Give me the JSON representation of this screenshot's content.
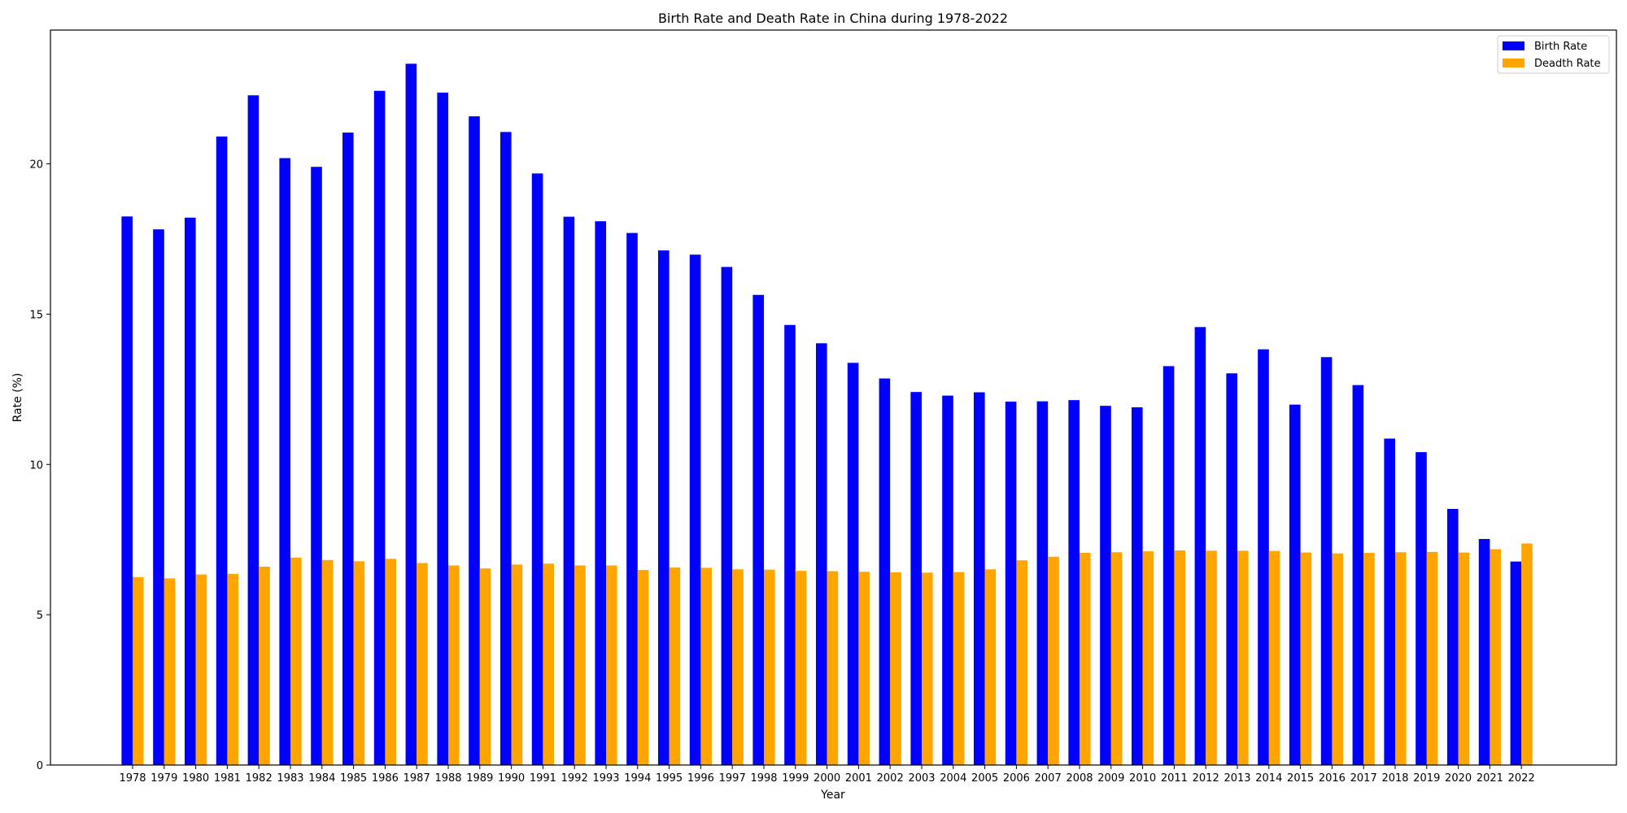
{
  "chart_data": {
    "type": "bar",
    "title": "Birth Rate and Death Rate in China during 1978-2022",
    "xlabel": "Year",
    "ylabel": "Rate (%)",
    "ylim": [
      0,
      24.45
    ],
    "yticks": [
      0,
      5,
      10,
      15,
      20
    ],
    "ytick_labels": [
      "0",
      "5",
      "10",
      "15",
      "20"
    ],
    "grid": false,
    "legend_position": "top-right",
    "categories": [
      "1978",
      "1979",
      "1980",
      "1981",
      "1982",
      "1983",
      "1984",
      "1985",
      "1986",
      "1987",
      "1988",
      "1989",
      "1990",
      "1991",
      "1992",
      "1993",
      "1994",
      "1995",
      "1996",
      "1997",
      "1998",
      "1999",
      "2000",
      "2001",
      "2002",
      "2003",
      "2004",
      "2005",
      "2006",
      "2007",
      "2008",
      "2009",
      "2010",
      "2011",
      "2012",
      "2013",
      "2014",
      "2015",
      "2016",
      "2017",
      "2018",
      "2019",
      "2020",
      "2021",
      "2022"
    ],
    "series": [
      {
        "name": "Birth Rate",
        "color": "#0000ff",
        "values": [
          18.25,
          17.82,
          18.21,
          20.91,
          22.28,
          20.19,
          19.9,
          21.04,
          22.43,
          23.33,
          22.37,
          21.58,
          21.06,
          19.68,
          18.24,
          18.09,
          17.7,
          17.12,
          16.98,
          16.57,
          15.64,
          14.64,
          14.03,
          13.38,
          12.86,
          12.41,
          12.29,
          12.4,
          12.09,
          12.1,
          12.14,
          11.95,
          11.9,
          13.27,
          14.57,
          13.03,
          13.83,
          11.99,
          13.57,
          12.64,
          10.86,
          10.41,
          8.52,
          7.52,
          6.77
        ]
      },
      {
        "name": "Deadth Rate",
        "color": "#ffa500",
        "values": [
          6.25,
          6.21,
          6.34,
          6.36,
          6.6,
          6.9,
          6.82,
          6.78,
          6.86,
          6.72,
          6.64,
          6.54,
          6.67,
          6.7,
          6.64,
          6.64,
          6.49,
          6.57,
          6.56,
          6.51,
          6.5,
          6.46,
          6.45,
          6.43,
          6.41,
          6.4,
          6.42,
          6.51,
          6.81,
          6.93,
          7.06,
          7.08,
          7.11,
          7.14,
          7.13,
          7.13,
          7.12,
          7.07,
          7.04,
          7.06,
          7.08,
          7.09,
          7.07,
          7.18,
          7.37
        ]
      }
    ]
  }
}
